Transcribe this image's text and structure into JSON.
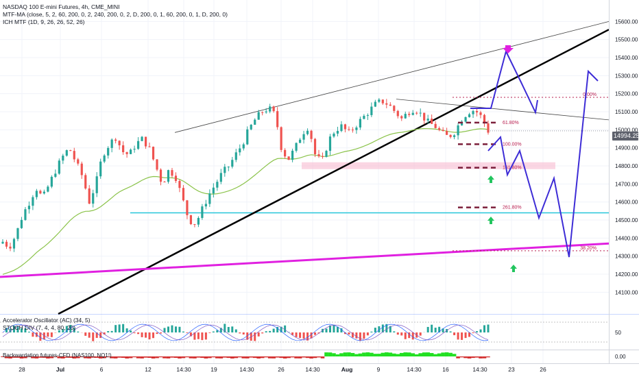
{
  "legend": {
    "line1": "NASDAQ 100 E-mini Futures, 4h, CME_MINI",
    "line2": "MTF-MA (close, 5, 2, 60, 200, 0, 2, 240, 200, 0, 2, D, 200, 0, 1, 60, 200, 0, 1, D, 200, 0)",
    "line3": "ICH MTF (1D, 9, 26, 26, 52, 26)"
  },
  "oscillator_pane": {
    "line1": "Accelerator Oscillator (AC) (34, 5)",
    "line2": "STOCH DIV (7, 4, 4, 80, 20)"
  },
  "futures_pane": {
    "title": "Backwardation futures-CFD (NAS100, NQ1!)"
  },
  "last_price": "14994.25",
  "colors": {
    "up": "#26a69a",
    "down": "#ef5350",
    "forecast": "#3d2cd6",
    "trendline_magenta": "#e020e0",
    "support_cyan": "#26c6da",
    "ma_green": "#8bc34a",
    "fib": "#b71c4e",
    "zone_pink": "#f8bbd0"
  },
  "chart_data": {
    "type": "candlestick",
    "title": "NASDAQ 100 E-mini Futures, 4h, CME_MINI",
    "ylim": [
      13980,
      15700
    ],
    "y_ticks": [
      14100,
      14200,
      14300,
      14400,
      14500,
      14600,
      14700,
      14800,
      14900,
      15000,
      15100,
      15200,
      15300,
      15400,
      15500,
      15600
    ],
    "y_tick_labels": [
      "14100.00",
      "14200.00",
      "14300.00",
      "14400.00",
      "14500.00",
      "14600.00",
      "14700.00",
      "14800.00",
      "14900.00",
      "15000.00",
      "15100.00",
      "15200.00",
      "15300.00",
      "15400.00",
      "15500.00",
      "15600.00"
    ],
    "x_tick_labels": [
      "28",
      "Jul",
      "6",
      "12",
      "14:30",
      "19",
      "14:30",
      "26",
      "14:30",
      "Aug",
      "9",
      "14:30",
      "16",
      "14:30",
      "23",
      "26"
    ],
    "grid": true,
    "fib_levels": [
      {
        "label": "0.00%",
        "price": 15180
      },
      {
        "label": "61.80%",
        "price": 15040
      },
      {
        "label": "100.00%",
        "price": 14920
      },
      {
        "label": "161.80%",
        "price": 14790
      },
      {
        "label": "261.80%",
        "price": 14570
      },
      {
        "label": "38.20%",
        "price": 14330
      }
    ],
    "zone": {
      "low": 14775,
      "high": 14805
    },
    "support_level": 14540,
    "candles_close_path": [
      14380,
      14350,
      14420,
      14530,
      14600,
      14680,
      14620,
      14700,
      14780,
      14850,
      14900,
      14820,
      14740,
      14600,
      14700,
      14860,
      14920,
      14960,
      14880,
      14860,
      14920,
      14950,
      14900,
      14800,
      14700,
      14780,
      14740,
      14620,
      14500,
      14480,
      14560,
      14640,
      14700,
      14760,
      14800,
      14860,
      14920,
      15000,
      15060,
      15100,
      15120,
      15080,
      14880,
      14840,
      14900,
      14980,
      15020,
      14860,
      14820,
      14940,
      15000,
      15020,
      14980,
      15020,
      15060,
      15100,
      15140,
      15160,
      15140,
      15100,
      15060,
      15100,
      15120,
      15080,
      15040,
      15020,
      14980,
      14960,
      14990,
      15060,
      15100,
      15110,
      15070,
      14994
    ],
    "series": [
      {
        "name": "MTF-MA",
        "kind": "moving_average"
      },
      {
        "name": "Forecast path",
        "kind": "projection"
      }
    ],
    "sub_indicators": [
      "Accelerator Oscillator (AC)",
      "STOCH DIV",
      "Backwardation futures-CFD"
    ],
    "osc_y_ticks": [
      50
    ],
    "fut_y_ticks": [
      0.0
    ],
    "osc_y_tick_labels": [
      "50"
    ],
    "fut_y_tick_labels": [
      "0.00"
    ]
  }
}
